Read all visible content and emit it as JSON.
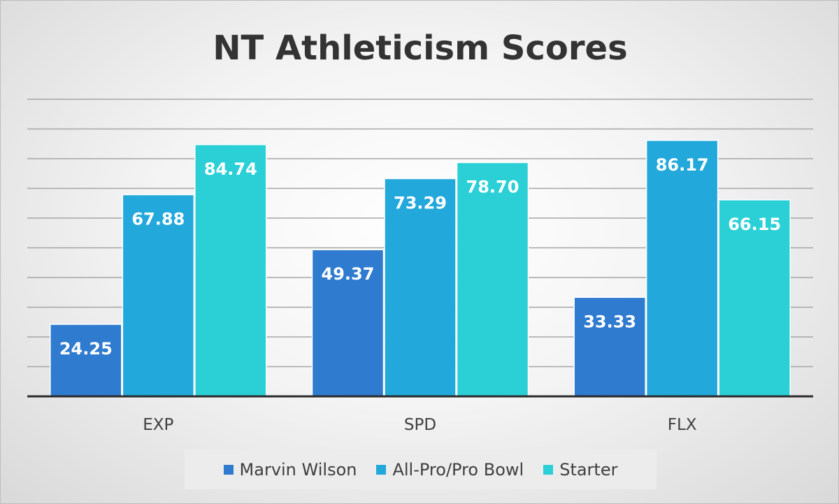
{
  "chart_data": {
    "type": "bar",
    "title": "NT Athleticism Scores",
    "xlabel": "",
    "ylabel": "",
    "categories": [
      "EXP",
      "SPD",
      "FLX"
    ],
    "series": [
      {
        "name": "Marvin Wilson",
        "values": [
          24.25,
          49.37,
          33.33
        ],
        "labels": [
          "24.25",
          "49.37",
          "33.33"
        ],
        "color": "#2e7bcf"
      },
      {
        "name": "All-Pro/Pro Bowl",
        "values": [
          67.88,
          73.29,
          86.17
        ],
        "labels": [
          "67.88",
          "73.29",
          "86.17"
        ],
        "color": "#23a8dc"
      },
      {
        "name": "Starter",
        "values": [
          84.74,
          78.7,
          66.15
        ],
        "labels": [
          "84.74",
          "78.70",
          "66.15"
        ],
        "color": "#2bd0d6"
      }
    ],
    "ylim": [
      0,
      100
    ],
    "grid": true,
    "legend_position": "bottom"
  },
  "colors": {
    "title": "#333333",
    "axis_label": "#404040",
    "gridline": "#a6a6a6",
    "baseline": "#2a2a2a",
    "data_label": "#ffffff"
  }
}
